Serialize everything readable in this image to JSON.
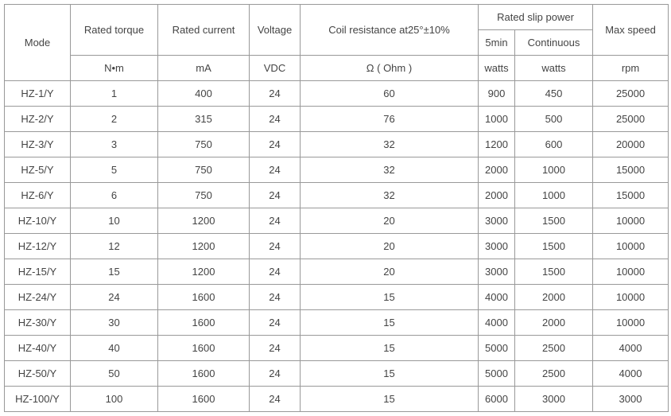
{
  "table": {
    "header": [
      "Mode",
      "Rated torque",
      "Rated current",
      "Voltage",
      "Coil resistance at25°±10%",
      "Rated slip power",
      "Max speed"
    ],
    "subheader": [
      "5min",
      "Continuous"
    ],
    "units": [
      "N•m",
      "mA",
      "VDC",
      "Ω ( Ohm )",
      "watts",
      "watts",
      "rpm"
    ],
    "rows": [
      [
        "HZ-1/Y",
        1,
        400,
        24,
        60,
        900,
        450,
        25000
      ],
      [
        "HZ-2/Y",
        2,
        315,
        24,
        76,
        1000,
        500,
        25000
      ],
      [
        "HZ-3/Y",
        3,
        750,
        24,
        32,
        1200,
        600,
        20000
      ],
      [
        "HZ-5/Y",
        5,
        750,
        24,
        32,
        2000,
        1000,
        15000
      ],
      [
        "HZ-6/Y",
        6,
        750,
        24,
        32,
        2000,
        1000,
        15000
      ],
      [
        "HZ-10/Y",
        10,
        1200,
        24,
        20,
        3000,
        1500,
        10000
      ],
      [
        "HZ-12/Y",
        12,
        1200,
        24,
        20,
        3000,
        1500,
        10000
      ],
      [
        "HZ-15/Y",
        15,
        1200,
        24,
        20,
        3000,
        1500,
        10000
      ],
      [
        "HZ-24/Y",
        24,
        1600,
        24,
        15,
        4000,
        2000,
        10000
      ],
      [
        "HZ-30/Y",
        30,
        1600,
        24,
        15,
        4000,
        2000,
        10000
      ],
      [
        "HZ-40/Y",
        40,
        1600,
        24,
        15,
        5000,
        2500,
        4000
      ],
      [
        "HZ-50/Y",
        50,
        1600,
        24,
        15,
        5000,
        2500,
        4000
      ],
      [
        "HZ-100/Y",
        100,
        1600,
        24,
        15,
        6000,
        3000,
        3000
      ]
    ]
  }
}
